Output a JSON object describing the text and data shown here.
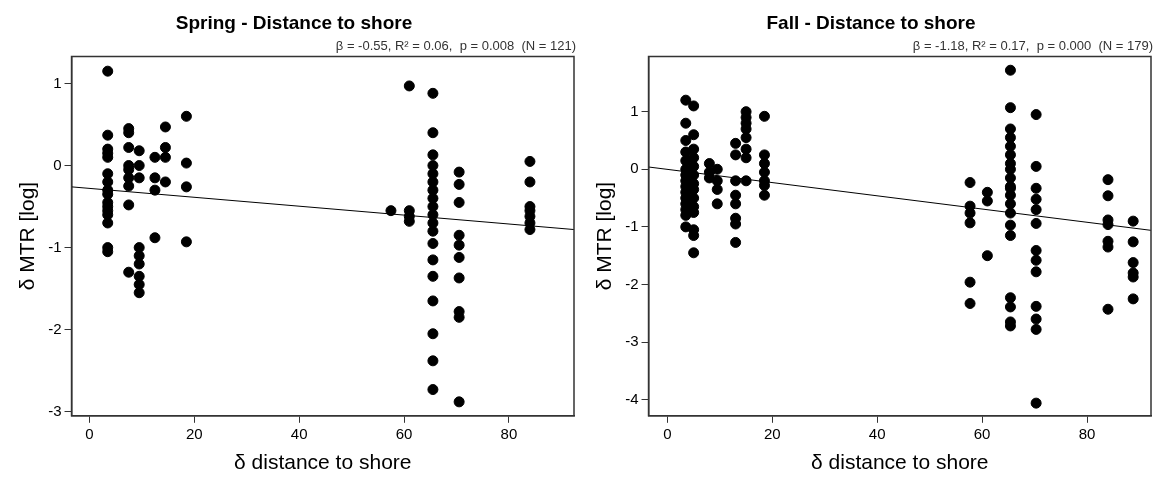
{
  "chart_data": [
    {
      "type": "scatter",
      "title": "Spring - Distance to shore",
      "subtitle": "β = -0.55, R² = 0.06,  p = 0.008  (N = 121)",
      "xlabel": "δ distance to shore",
      "ylabel": "δ MTR [log]",
      "xlim": [
        -3.4,
        92.4
      ],
      "ylim": [
        -3.05,
        1.33
      ],
      "xticks": [
        0,
        20,
        40,
        60,
        80
      ],
      "yticks": [
        -3,
        -2,
        -1,
        0,
        1
      ],
      "grid": false,
      "legend": false,
      "series": [
        {
          "marker": "circle",
          "color": "#000000",
          "x": [
            3.5,
            3.5,
            3.5,
            3.5,
            3.5,
            3.5,
            3.5,
            3.5,
            3.5,
            3.5,
            3.5,
            3.5,
            3.5,
            3.5,
            3.5,
            3.5,
            7.5,
            7.5,
            7.5,
            7.5,
            7.5,
            7.5,
            7.5,
            7.5,
            7.5,
            9.5,
            9.5,
            9.5,
            9.5,
            9.5,
            9.5,
            9.5,
            9.5,
            9.5,
            12.5,
            12.5,
            12.5,
            12.5,
            14.5,
            14.5,
            14.5,
            14.5,
            18.5,
            18.5,
            18.5,
            18.5,
            57.5,
            61,
            61,
            61,
            61,
            65.5,
            65.5,
            65.5,
            65.5,
            65.5,
            65.5,
            65.5,
            65.5,
            65.5,
            65.5,
            65.5,
            65.5,
            65.5,
            65.5,
            65.5,
            65.5,
            65.5,
            65.5,
            65.5,
            70.5,
            70.5,
            70.5,
            70.5,
            70.5,
            70.5,
            70.5,
            70.5,
            70.5,
            70.5,
            84,
            84,
            84,
            84,
            84,
            84,
            84
          ],
          "values": [
            1.15,
            0.37,
            0.2,
            0.15,
            0.1,
            -0.1,
            -0.2,
            -0.3,
            -0.35,
            -0.45,
            -0.5,
            -0.55,
            -0.6,
            -0.7,
            -1.0,
            -1.05,
            0.45,
            0.4,
            0.22,
            0.0,
            -0.05,
            -0.15,
            -0.25,
            -0.48,
            -1.3,
            0.18,
            0.0,
            -0.15,
            -1.0,
            -1.1,
            -1.2,
            -1.35,
            -1.45,
            -1.55,
            0.1,
            -0.15,
            -0.3,
            -0.88,
            0.47,
            0.22,
            0.1,
            -0.2,
            0.6,
            0.03,
            -0.26,
            -0.93,
            -0.55,
            0.97,
            -0.55,
            -0.62,
            -0.68,
            0.88,
            0.4,
            0.13,
            0.0,
            -0.1,
            -0.2,
            -0.3,
            -0.4,
            -0.5,
            -0.6,
            -0.7,
            -0.8,
            -0.95,
            -1.15,
            -1.35,
            -1.65,
            -2.05,
            -2.38,
            -2.73,
            -0.08,
            -0.23,
            -0.45,
            -0.85,
            -0.97,
            -1.12,
            -1.37,
            -1.78,
            -1.85,
            -2.88,
            0.05,
            -0.2,
            -0.5,
            -0.55,
            -0.62,
            -0.7,
            -0.78
          ]
        },
        {
          "type": "line",
          "color": "#000000",
          "x": [
            -3.4,
            92.4
          ],
          "values": [
            -0.26,
            -0.78
          ]
        }
      ]
    },
    {
      "type": "scatter",
      "title": "Fall - Distance to shore",
      "subtitle": "β = -1.18, R² = 0.17,  p = 0.000  (N = 179)",
      "xlabel": "δ distance to shore",
      "ylabel": "δ MTR [log]",
      "xlim": [
        -3.6,
        92.2
      ],
      "ylim": [
        -4.28,
        1.96
      ],
      "xticks": [
        0,
        20,
        40,
        60,
        80
      ],
      "yticks": [
        -4,
        -3,
        -2,
        -1,
        0,
        1
      ],
      "grid": false,
      "legend": false,
      "series": [
        {
          "marker": "circle",
          "color": "#000000",
          "x": [
            3.5,
            3.5,
            3.5,
            3.5,
            3.5,
            3.5,
            3.5,
            3.5,
            3.5,
            3.5,
            3.5,
            3.5,
            3.5,
            3.5,
            3.5,
            5,
            5,
            5,
            5,
            5,
            5,
            5,
            5,
            5,
            5,
            5,
            5,
            5,
            5,
            8,
            8,
            8,
            9.5,
            9.5,
            9.5,
            9.5,
            13,
            13,
            13,
            13,
            13,
            13,
            13,
            13,
            15,
            15,
            15,
            15,
            15,
            15,
            15,
            15,
            18.5,
            18.5,
            18.5,
            18.5,
            18.5,
            18.5,
            18.5,
            57.7,
            57.7,
            57.7,
            57.7,
            57.7,
            57.7,
            61,
            61,
            61,
            65.4,
            65.4,
            65.4,
            65.4,
            65.4,
            65.4,
            65.4,
            65.4,
            65.4,
            65.4,
            65.4,
            65.4,
            65.4,
            65.4,
            65.4,
            65.4,
            65.4,
            65.4,
            65.4,
            65.4,
            70.3,
            70.3,
            70.3,
            70.3,
            70.3,
            70.3,
            70.3,
            70.3,
            70.3,
            70.3,
            70.3,
            70.3,
            70.3,
            84,
            84,
            84,
            84,
            84,
            84,
            84,
            88.8,
            88.8,
            88.8,
            88.8,
            88.8,
            88.8
          ],
          "values": [
            1.2,
            0.8,
            0.5,
            0.3,
            0.15,
            0.0,
            -0.1,
            -0.2,
            -0.3,
            -0.4,
            -0.5,
            -0.6,
            -0.7,
            -0.8,
            -1.0,
            1.1,
            0.6,
            0.35,
            0.2,
            0.05,
            -0.1,
            -0.25,
            -0.35,
            -0.5,
            -0.65,
            -0.75,
            -1.05,
            -1.15,
            -1.45,
            0.1,
            -0.05,
            -0.15,
            0.0,
            -0.2,
            -0.35,
            -0.6,
            0.45,
            0.25,
            -0.2,
            -0.45,
            -0.6,
            -0.85,
            -0.95,
            -1.27,
            1.0,
            0.9,
            0.8,
            0.7,
            0.55,
            0.35,
            0.2,
            -0.2,
            0.92,
            0.25,
            0.1,
            -0.05,
            -0.2,
            -0.28,
            -0.45,
            -0.23,
            -0.64,
            -0.76,
            -0.93,
            -1.96,
            -2.33,
            -0.4,
            -0.55,
            -1.5,
            1.72,
            1.07,
            0.7,
            0.55,
            0.4,
            0.25,
            0.1,
            0.0,
            -0.15,
            -0.3,
            -0.45,
            -0.6,
            -0.76,
            -0.97,
            -1.15,
            -2.23,
            -2.39,
            -2.65,
            -2.72,
            -0.33,
            0.95,
            0.05,
            -0.52,
            -0.7,
            -0.94,
            -1.41,
            -1.58,
            -1.78,
            -2.38,
            -2.6,
            -2.78,
            -4.06,
            -0.33,
            -0.18,
            -0.46,
            -0.88,
            -0.96,
            -1.25,
            -1.35,
            -2.43,
            -0.9,
            -1.26,
            -1.62,
            -1.8,
            -1.87,
            -2.25
          ]
        },
        {
          "type": "line",
          "color": "#000000",
          "x": [
            -3.6,
            92.2
          ],
          "values": [
            0.04,
            -1.06
          ]
        }
      ]
    }
  ]
}
